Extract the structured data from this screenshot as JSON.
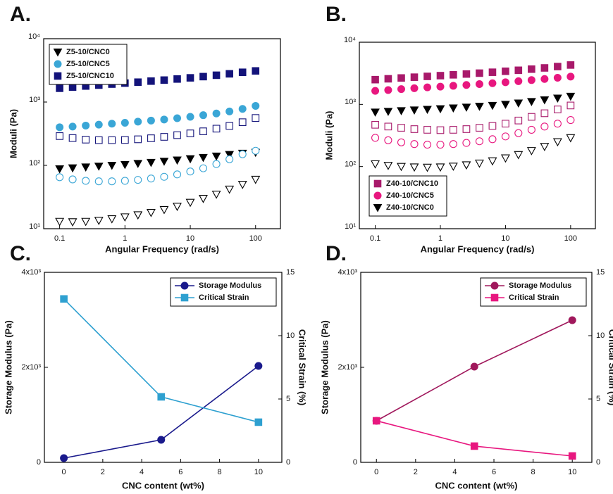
{
  "chart_data": [
    {
      "type": "scatter",
      "panel_label": "A.",
      "xlabel": "Angular Frequency (rad/s)",
      "ylabel": "Moduli (Pa)",
      "xscale": "log",
      "yscale": "log",
      "xlim": [
        0.057,
        240
      ],
      "ylim": [
        10,
        10000
      ],
      "xticks": [
        0.1,
        1,
        10,
        100
      ],
      "yticks": [
        {
          "value": 10,
          "label": "10¹"
        },
        {
          "value": 100,
          "label": "10²"
        },
        {
          "value": 1000,
          "label": "10³"
        },
        {
          "value": 10000,
          "label": "10⁴"
        }
      ],
      "legend": "upper left",
      "x": [
        0.1,
        0.158,
        0.251,
        0.398,
        0.631,
        1,
        1.58,
        2.51,
        3.98,
        6.31,
        10,
        15.8,
        25.1,
        39.8,
        63.1,
        100
      ],
      "series": [
        {
          "name": "Z5-10/CNC0",
          "color": "#000000",
          "marker": "triangle-down",
          "filled": true,
          "values": [
            88,
            91,
            94,
            97,
            100,
            103,
            107,
            111,
            116,
            121,
            127,
            133,
            140,
            148,
            155,
            160
          ]
        },
        {
          "name": "Z5-10/CNC5",
          "color": "#3aa6d6",
          "marker": "circle",
          "filled": true,
          "values": [
            400,
            410,
            425,
            440,
            455,
            470,
            490,
            510,
            530,
            555,
            585,
            620,
            660,
            710,
            780,
            870
          ]
        },
        {
          "name": "Z5-10/CNC10",
          "color": "#13137a",
          "marker": "square",
          "filled": true,
          "values": [
            1650,
            1720,
            1790,
            1850,
            1920,
            1990,
            2060,
            2140,
            2220,
            2310,
            2410,
            2520,
            2650,
            2790,
            2950,
            3100
          ]
        },
        {
          "color": "#13137a",
          "marker": "square",
          "filled": false,
          "values": [
            290,
            270,
            255,
            250,
            250,
            252,
            258,
            268,
            282,
            300,
            320,
            345,
            380,
            420,
            480,
            560
          ]
        },
        {
          "color": "#3aa6d6",
          "marker": "circle",
          "filled": false,
          "values": [
            65,
            60,
            57,
            56,
            56,
            57,
            59,
            62,
            66,
            72,
            80,
            90,
            105,
            125,
            150,
            170
          ]
        },
        {
          "color": "#000000",
          "marker": "triangle-down",
          "filled": false,
          "values": [
            13,
            12.8,
            13,
            13.5,
            14.3,
            15.3,
            16.5,
            18,
            20,
            22.5,
            26,
            30,
            35,
            42,
            50,
            60
          ]
        }
      ]
    },
    {
      "type": "scatter",
      "panel_label": "B.",
      "xlabel": "Angular Frequency (rad/s)",
      "ylabel": "Moduli (Pa)",
      "xscale": "log",
      "yscale": "log",
      "xlim": [
        0.057,
        240
      ],
      "ylim": [
        10,
        10000
      ],
      "xticks": [
        0.1,
        1,
        10,
        100
      ],
      "yticks": [
        {
          "value": 10,
          "label": "10¹"
        },
        {
          "value": 100,
          "label": "10²"
        },
        {
          "value": 1000,
          "label": "10³"
        },
        {
          "value": 10000,
          "label": "10⁴"
        }
      ],
      "legend": "lower left",
      "x": [
        0.1,
        0.158,
        0.251,
        0.398,
        0.631,
        1,
        1.58,
        2.51,
        3.98,
        6.31,
        10,
        15.8,
        25.1,
        39.8,
        63.1,
        100
      ],
      "series": [
        {
          "name": "Z40-10/CNC10",
          "color": "#a8196a",
          "marker": "square",
          "filled": true,
          "values": [
            2500,
            2580,
            2660,
            2740,
            2820,
            2900,
            2990,
            3080,
            3180,
            3290,
            3410,
            3540,
            3690,
            3860,
            4060,
            4300
          ]
        },
        {
          "name": "Z40-10/CNC5",
          "color": "#e8177f",
          "marker": "circle",
          "filled": true,
          "values": [
            1650,
            1700,
            1760,
            1820,
            1880,
            1930,
            1990,
            2050,
            2120,
            2190,
            2270,
            2360,
            2460,
            2560,
            2680,
            2800
          ]
        },
        {
          "name": "Z40-10/CNC0",
          "color": "#000000",
          "marker": "triangle-down",
          "filled": true,
          "values": [
            750,
            770,
            790,
            810,
            830,
            850,
            875,
            900,
            930,
            960,
            1000,
            1050,
            1110,
            1180,
            1260,
            1350
          ]
        },
        {
          "color": "#a8196a",
          "marker": "square",
          "filled": false,
          "values": [
            470,
            440,
            420,
            400,
            390,
            385,
            390,
            400,
            420,
            450,
            490,
            550,
            630,
            720,
            830,
            960
          ]
        },
        {
          "color": "#e8177f",
          "marker": "circle",
          "filled": false,
          "values": [
            290,
            265,
            245,
            230,
            225,
            225,
            230,
            240,
            255,
            275,
            305,
            345,
            390,
            440,
            490,
            560
          ]
        },
        {
          "color": "#000000",
          "marker": "triangle-down",
          "filled": false,
          "values": [
            110,
            104,
            100,
            98,
            97,
            98,
            101,
            106,
            113,
            123,
            137,
            155,
            180,
            210,
            250,
            290
          ]
        }
      ]
    },
    {
      "type": "line",
      "panel_label": "C.",
      "xlabel": "CNC content (wt%)",
      "ylabel": "Storage Modulus (Pa)",
      "y2label": "Critical Strain (%)",
      "y_color": "#1a1a8c",
      "y2_color": "#2ea0d0",
      "xlim": [
        -1,
        11.2
      ],
      "ylim": [
        0,
        4000
      ],
      "y2lim": [
        0,
        15
      ],
      "xticks": [
        0,
        2,
        4,
        6,
        8,
        10
      ],
      "yticks": [
        0,
        {
          "value": 2000,
          "label": "2x10³"
        },
        {
          "value": 4000,
          "label": "4x10³"
        }
      ],
      "y2ticks": [
        0,
        5,
        10,
        15
      ],
      "legend": "upper right",
      "x": [
        0,
        5,
        10
      ],
      "series": [
        {
          "name": "Storage Modulus",
          "color": "#1a1a8c",
          "marker": "circle",
          "values": [
            89,
            474,
            2030
          ]
        },
        {
          "name": "Critical Strain",
          "color": "#2ea0d0",
          "marker": "square",
          "axis": "y2",
          "values": [
            12.9,
            5.17,
            3.17
          ]
        }
      ]
    },
    {
      "type": "line",
      "panel_label": "D.",
      "xlabel": "CNC content (wt%)",
      "ylabel": "Storage Modulus (Pa)",
      "y2label": "Critical Strain (%)",
      "y_color": "#a0185c",
      "y2_color": "#e8177f",
      "xlim": [
        -0.8,
        11
      ],
      "ylim": [
        0,
        4000
      ],
      "y2lim": [
        0,
        15
      ],
      "xticks": [
        0,
        2,
        4,
        6,
        8,
        10
      ],
      "yticks": [
        0,
        {
          "value": 2000,
          "label": "2x10³"
        },
        {
          "value": 4000,
          "label": "4x10³"
        }
      ],
      "y2ticks": [
        0,
        5,
        10,
        15
      ],
      "legend": "upper right",
      "x": [
        0,
        5,
        10
      ],
      "series": [
        {
          "name": "Storage Modulus",
          "color": "#a0185c",
          "marker": "circle",
          "values": [
            874,
            2015,
            2993
          ]
        },
        {
          "name": "Critical Strain",
          "color": "#e8177f",
          "marker": "square",
          "axis": "y2",
          "values": [
            3.28,
            1.28,
            0.5
          ]
        }
      ]
    }
  ]
}
